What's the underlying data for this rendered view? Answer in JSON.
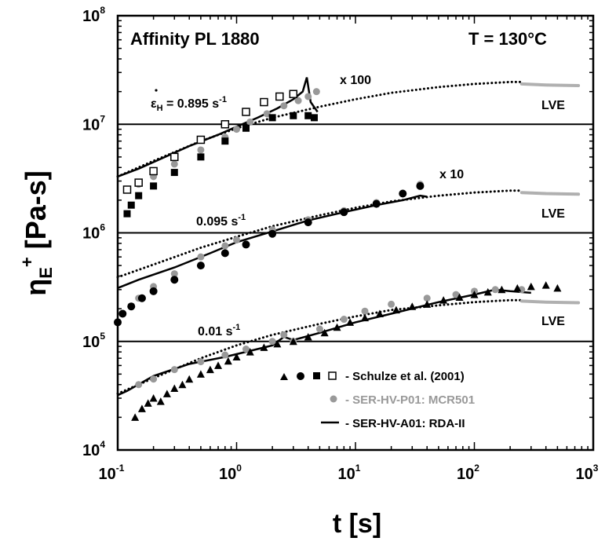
{
  "chart_data": {
    "type": "scatter",
    "title": "Affinity PL 1880",
    "temperature_label": "T = 130°C",
    "xlabel": "t [s]",
    "ylabel": {
      "base": "η",
      "sub": "E",
      "sup": "+",
      "rest": " [Pa-s]"
    },
    "xscale": "log",
    "yscale": "log",
    "xlim": [
      0.1,
      1000
    ],
    "ylim": [
      10000,
      100000000
    ],
    "xticks": [
      {
        "base": "10",
        "exp": "-1"
      },
      {
        "base": "10",
        "exp": "0"
      },
      {
        "base": "10",
        "exp": "1"
      },
      {
        "base": "10",
        "exp": "2"
      },
      {
        "base": "10",
        "exp": "3"
      }
    ],
    "yticks": [
      {
        "base": "10",
        "exp": "4"
      },
      {
        "base": "10",
        "exp": "5"
      },
      {
        "base": "10",
        "exp": "6"
      },
      {
        "base": "10",
        "exp": "7"
      },
      {
        "base": "10",
        "exp": "8"
      }
    ],
    "reference_lines_y": [
      100000,
      1000000,
      10000000
    ],
    "annotations": {
      "rate_high": {
        "symbol": "ε",
        "sub": "H",
        "text": " = 0.895 s",
        "sup": "-1"
      },
      "rate_mid": {
        "text": "0.095 s",
        "sup": "-1"
      },
      "rate_low": {
        "text": "0.01 s",
        "sup": "-1"
      },
      "mult_100": "x 100",
      "mult_10": "x 10",
      "lve_labels": [
        "LVE",
        "LVE",
        "LVE"
      ]
    },
    "legend": {
      "position": "bottom-right",
      "entries": [
        {
          "label": "- Schulze et al. (2001)",
          "color": "#000000",
          "markers": [
            "triangle",
            "circle",
            "square",
            "open-square"
          ]
        },
        {
          "label": "- SER-HV-P01: MCR501",
          "color": "#999999",
          "markers": [
            "gray-circle"
          ]
        },
        {
          "label": "- SER-HV-A01: RDA-II",
          "color": "#000000",
          "markers": [
            "line"
          ]
        }
      ]
    },
    "series": [
      {
        "name": "- SER-HV-A01: RDA-II",
        "rate_label": "0.895 s-1",
        "marker": "line",
        "color": "#000000",
        "x": [
          0.1,
          0.15,
          0.25,
          0.4,
          0.7,
          1.0,
          1.5,
          2.2,
          3.0,
          3.6,
          3.9,
          4.2,
          4.8
        ],
        "y": [
          3300000,
          3900000,
          5000000,
          6300000,
          8000000,
          9500000,
          11500000,
          14000000,
          17000000,
          20000000,
          27000000,
          16000000,
          13000000
        ]
      },
      {
        "name": "- SER-HV-P01: MCR501",
        "rate_label": "0.895 s-1",
        "marker": "gray-circle",
        "color": "#999999",
        "x": [
          0.15,
          0.2,
          0.3,
          0.5,
          0.8,
          1.0,
          1.3,
          1.8,
          2.5,
          3.3,
          4.0,
          4.7
        ],
        "y": [
          2800000,
          3300000,
          4300000,
          5800000,
          7600000,
          9000000,
          10500000,
          12500000,
          14800000,
          16500000,
          18000000,
          20000000
        ]
      },
      {
        "name": "Schulze open squares",
        "rate_label": "0.895 s-1",
        "marker": "open-square",
        "color": "#000000",
        "x": [
          0.12,
          0.15,
          0.2,
          0.3,
          0.5,
          0.8,
          1.2,
          1.7,
          2.3,
          3.0
        ],
        "y": [
          2500000,
          2900000,
          3700000,
          5000000,
          7200000,
          10000000,
          13000000,
          16000000,
          18000000,
          19000000
        ]
      },
      {
        "name": "Schulze filled squares",
        "rate_label": "0.895 s-1",
        "marker": "square",
        "color": "#000000",
        "x": [
          0.12,
          0.13,
          0.15,
          0.2,
          0.3,
          0.5,
          0.8,
          1.2,
          2.0,
          3.0,
          4.0,
          4.5
        ],
        "y": [
          1500000,
          1800000,
          2200000,
          2700000,
          3600000,
          5000000,
          7000000,
          9200000,
          11500000,
          12000000,
          12000000,
          11500000
        ]
      },
      {
        "name": "- SER-HV-A01: RDA-II",
        "rate_label": "0.095 s-1",
        "marker": "line",
        "color": "#000000",
        "x": [
          0.1,
          0.15,
          0.3,
          0.6,
          1.0,
          2.0,
          4.0,
          8.0,
          15.0,
          25.0,
          35.0,
          40.0
        ],
        "y": [
          310000,
          370000,
          480000,
          650000,
          820000,
          1030000,
          1300000,
          1550000,
          1800000,
          2000000,
          2200000,
          2150000
        ]
      },
      {
        "name": "- SER-HV-P01: MCR501",
        "rate_label": "0.095 s-1",
        "marker": "gray-circle",
        "color": "#999999",
        "x": [
          0.15,
          0.2,
          0.3,
          0.5,
          0.8,
          1.0,
          2.0,
          4.0,
          8.0,
          15.0,
          25.0,
          35.0
        ],
        "y": [
          250000,
          320000,
          420000,
          600000,
          760000,
          860000,
          1070000,
          1320000,
          1600000,
          1900000,
          2300000,
          2800000
        ]
      },
      {
        "name": "Schulze filled circles",
        "rate_label": "0.095 s-1",
        "marker": "circle",
        "color": "#000000",
        "x": [
          0.1,
          0.11,
          0.13,
          0.16,
          0.2,
          0.3,
          0.5,
          0.8,
          1.2,
          2.0,
          4.0,
          8.0,
          15.0,
          25.0,
          35.0
        ],
        "y": [
          150000,
          180000,
          210000,
          250000,
          290000,
          370000,
          500000,
          650000,
          780000,
          980000,
          1250000,
          1550000,
          1850000,
          2300000,
          2700000
        ]
      },
      {
        "name": "- SER-HV-A01: RDA-II",
        "rate_label": "0.01 s-1",
        "marker": "line",
        "color": "#000000",
        "x": [
          0.1,
          0.12,
          0.2,
          0.4,
          0.8,
          1.5,
          2.0,
          2.5,
          3.0,
          5.0,
          10.0,
          20.0,
          50.0,
          100.0,
          150.0,
          200.0,
          300.0
        ],
        "y": [
          32000,
          35000,
          48000,
          62000,
          72000,
          85000,
          92000,
          110000,
          103000,
          120000,
          150000,
          180000,
          230000,
          270000,
          300000,
          290000,
          280000
        ]
      },
      {
        "name": "- SER-HV-P01: MCR501",
        "rate_label": "0.01 s-1",
        "marker": "gray-circle",
        "color": "#999999",
        "x": [
          0.15,
          0.2,
          0.3,
          0.5,
          0.8,
          1.2,
          2.0,
          2.5,
          3.0,
          5.0,
          8.0,
          12.0,
          20.0,
          40.0,
          70.0,
          100.0,
          150.0,
          250.0
        ],
        "y": [
          40000,
          45000,
          55000,
          65000,
          75000,
          85000,
          100000,
          115000,
          100000,
          130000,
          160000,
          190000,
          220000,
          250000,
          270000,
          290000,
          300000,
          300000
        ]
      },
      {
        "name": "Schulze triangles",
        "rate_label": "0.01 s-1",
        "marker": "triangle",
        "color": "#000000",
        "x": [
          0.14,
          0.16,
          0.18,
          0.2,
          0.23,
          0.26,
          0.3,
          0.35,
          0.4,
          0.5,
          0.6,
          0.7,
          0.85,
          1.0,
          1.3,
          1.7,
          2.2,
          3.0,
          4.0,
          5.5,
          7.0,
          9.0,
          12.0,
          16.0,
          22.0,
          30.0,
          40.0,
          55.0,
          75.0,
          100.0,
          130.0,
          170.0,
          230.0,
          300.0,
          400.0,
          500.0
        ],
        "y": [
          20000,
          24000,
          27000,
          30000,
          28000,
          33000,
          37000,
          40000,
          45000,
          50000,
          55000,
          60000,
          66000,
          72000,
          80000,
          88000,
          95000,
          100000,
          110000,
          120000,
          135000,
          150000,
          165000,
          180000,
          195000,
          210000,
          220000,
          240000,
          255000,
          270000,
          285000,
          300000,
          310000,
          320000,
          330000,
          310000
        ]
      }
    ],
    "lve_curves": [
      {
        "name": "LVE x 100",
        "x": [
          0.1,
          0.2,
          0.5,
          1.0,
          2.0,
          5.0,
          10.0,
          20.0,
          50.0,
          100.0,
          200.0,
          250.0
        ],
        "y": [
          3300000,
          4600000,
          7000000,
          9200000,
          11500000,
          14500000,
          17000000,
          19500000,
          22000000,
          23500000,
          24500000,
          24500000
        ]
      },
      {
        "name": "LVE x 100 gray",
        "x": [
          250.0,
          400.0,
          600.0,
          750.0
        ],
        "y": [
          23500000,
          23000000,
          22800000,
          22700000
        ]
      },
      {
        "name": "LVE x 10",
        "x": [
          0.1,
          0.2,
          0.5,
          1.0,
          2.0,
          5.0,
          10.0,
          20.0,
          50.0,
          100.0,
          200.0,
          250.0
        ],
        "y": [
          390000,
          510000,
          730000,
          920000,
          1150000,
          1450000,
          1700000,
          1950000,
          2200000,
          2350000,
          2450000,
          2450000
        ]
      },
      {
        "name": "LVE x 10 gray",
        "x": [
          250.0,
          400.0,
          600.0,
          750.0
        ],
        "y": [
          2350000,
          2300000,
          2280000,
          2270000
        ]
      },
      {
        "name": "LVE",
        "x": [
          0.1,
          0.2,
          0.5,
          1.0,
          2.0,
          5.0,
          10.0,
          20.0,
          50.0,
          100.0,
          200.0,
          250.0
        ],
        "y": [
          33000,
          46000,
          70000,
          92000,
          115000,
          145000,
          170000,
          195000,
          215000,
          230000,
          240000,
          240000
        ]
      },
      {
        "name": "LVE gray",
        "x": [
          250.0,
          400.0,
          600.0,
          750.0
        ],
        "y": [
          235000,
          230000,
          228000,
          227000
        ]
      }
    ]
  }
}
